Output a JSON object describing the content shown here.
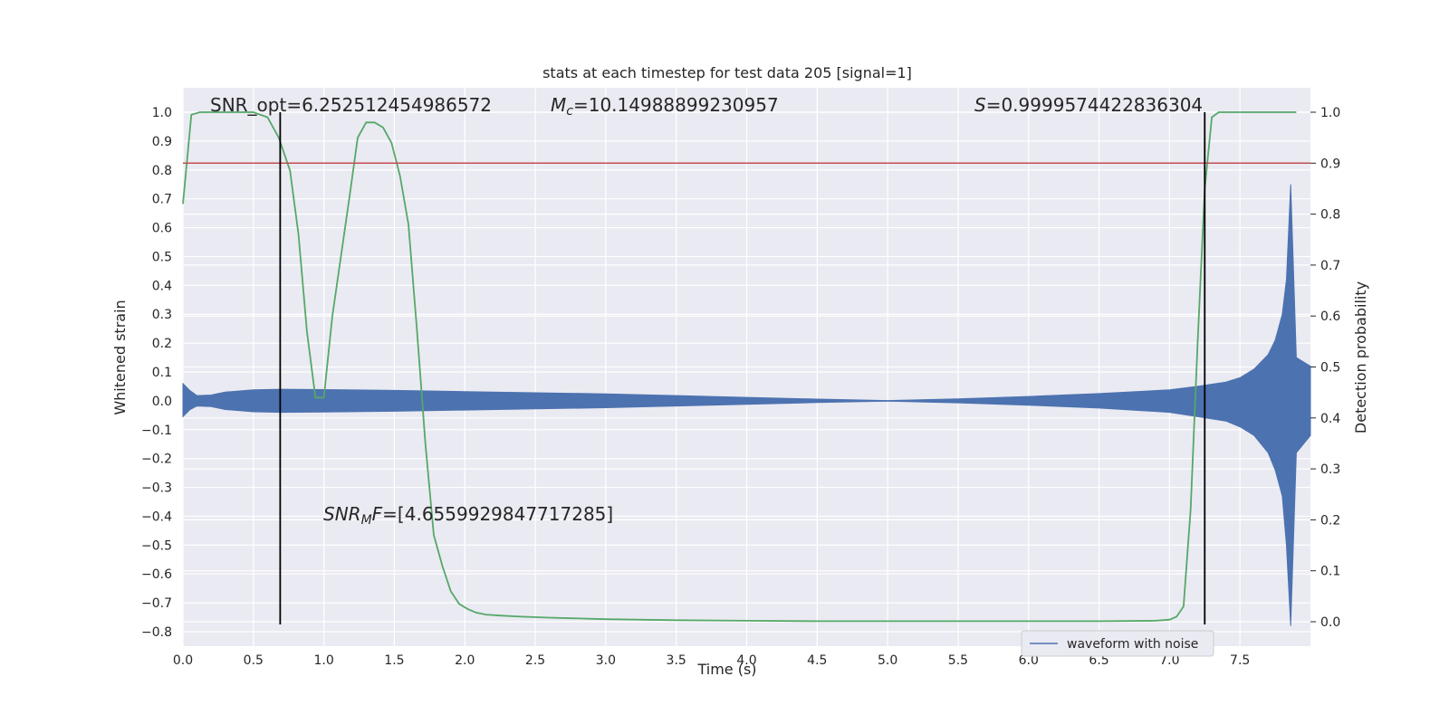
{
  "chart_data": {
    "type": "line",
    "title": "stats at each timestep for test data 205 [signal=1]",
    "xlabel": "Time (s)",
    "ylabel": "Whitened strain",
    "y2label": "Detection probability",
    "xlim": [
      0.0,
      8.0
    ],
    "ylim": [
      -0.85,
      1.08
    ],
    "y2lim": [
      -0.05,
      1.06
    ],
    "xticks": [
      "0.0",
      "0.5",
      "1.0",
      "1.5",
      "2.0",
      "2.5",
      "3.0",
      "3.5",
      "4.0",
      "4.5",
      "5.0",
      "5.5",
      "6.0",
      "6.5",
      "7.0",
      "7.5"
    ],
    "xtick_values": [
      0,
      0.5,
      1,
      1.5,
      2,
      2.5,
      3,
      3.5,
      4,
      4.5,
      5,
      5.5,
      6,
      6.5,
      7,
      7.5
    ],
    "yticks": [
      "1.0",
      "0.9",
      "0.8",
      "0.7",
      "0.6",
      "0.5",
      "0.4",
      "0.3",
      "0.2",
      "0.1",
      "0.0",
      "−0.1",
      "−0.2",
      "−0.3",
      "−0.4",
      "−0.5",
      "−0.6",
      "−0.7",
      "−0.8"
    ],
    "ytick_values": [
      1.0,
      0.9,
      0.8,
      0.7,
      0.6,
      0.5,
      0.4,
      0.3,
      0.2,
      0.1,
      0.0,
      -0.1,
      -0.2,
      -0.3,
      -0.4,
      -0.5,
      -0.6,
      -0.7,
      -0.8
    ],
    "y2ticks": [
      "1.0",
      "0.9",
      "0.8",
      "0.7",
      "0.6",
      "0.5",
      "0.4",
      "0.3",
      "0.2",
      "0.1",
      "0.0"
    ],
    "y2tick_values": [
      1.0,
      0.9,
      0.8,
      0.7,
      0.6,
      0.5,
      0.4,
      0.3,
      0.2,
      0.1,
      0.0
    ],
    "grid": true,
    "legend": {
      "entries": [
        "waveform with noise"
      ],
      "placement": "lower-right"
    },
    "annotations": {
      "snr_opt": "SNR_opt=6.252512454986572",
      "mc_symbol": "M",
      "mc_sub": "c",
      "mc_value": "=10.14988899230957",
      "s_symbol": "S",
      "s_value": "=0.9999574422836304",
      "snr_mf_base": "SNR",
      "snr_mf_sub": "M",
      "snr_mf_f": "F",
      "snr_mf_value": "=[4.6559929847717285]"
    },
    "threshold_probability": 0.9,
    "vertical_lines_x": [
      0.69,
      7.25
    ],
    "waveform_envelope": {
      "t": [
        0.0,
        0.05,
        0.1,
        0.2,
        0.3,
        0.5,
        0.7,
        1.0,
        1.5,
        2.0,
        2.5,
        3.0,
        3.5,
        4.0,
        4.5,
        5.0,
        5.5,
        6.0,
        6.5,
        7.0,
        7.2,
        7.4,
        7.5,
        7.6,
        7.7,
        7.75,
        7.8,
        7.83,
        7.86,
        7.9,
        8.0
      ],
      "upper": [
        0.06,
        0.035,
        0.018,
        0.02,
        0.03,
        0.038,
        0.04,
        0.039,
        0.036,
        0.032,
        0.028,
        0.024,
        0.018,
        0.012,
        0.006,
        0.001,
        0.007,
        0.015,
        0.025,
        0.038,
        0.05,
        0.065,
        0.08,
        0.11,
        0.16,
        0.21,
        0.3,
        0.42,
        0.75,
        0.15,
        0.12
      ],
      "lower": [
        -0.055,
        -0.03,
        -0.018,
        -0.02,
        -0.03,
        -0.038,
        -0.04,
        -0.039,
        -0.036,
        -0.032,
        -0.028,
        -0.024,
        -0.018,
        -0.012,
        -0.006,
        -0.001,
        -0.007,
        -0.015,
        -0.025,
        -0.04,
        -0.055,
        -0.07,
        -0.09,
        -0.12,
        -0.18,
        -0.24,
        -0.33,
        -0.5,
        -0.78,
        -0.18,
        -0.12
      ]
    },
    "series": [
      {
        "name": "detection probability",
        "axis": "right",
        "color": "#55a868",
        "x": [
          0.0,
          0.06,
          0.12,
          0.3,
          0.5,
          0.6,
          0.68,
          0.76,
          0.82,
          0.88,
          0.94,
          1.0,
          1.06,
          1.12,
          1.18,
          1.24,
          1.3,
          1.36,
          1.42,
          1.48,
          1.54,
          1.6,
          1.66,
          1.72,
          1.78,
          1.84,
          1.9,
          1.96,
          2.02,
          2.08,
          2.15,
          2.25,
          2.4,
          2.6,
          3.0,
          3.5,
          4.0,
          4.5,
          5.0,
          5.5,
          6.0,
          6.5,
          6.9,
          7.0,
          7.05,
          7.1,
          7.15,
          7.2,
          7.25,
          7.3,
          7.35,
          7.45,
          7.6,
          7.8,
          7.9
        ],
        "y": [
          0.82,
          0.995,
          1.0,
          1.0,
          1.0,
          0.99,
          0.95,
          0.885,
          0.76,
          0.57,
          0.44,
          0.44,
          0.6,
          0.715,
          0.83,
          0.95,
          0.98,
          0.98,
          0.97,
          0.94,
          0.875,
          0.78,
          0.575,
          0.35,
          0.17,
          0.11,
          0.06,
          0.035,
          0.025,
          0.018,
          0.014,
          0.012,
          0.01,
          0.008,
          0.005,
          0.003,
          0.002,
          0.001,
          0.001,
          0.001,
          0.001,
          0.001,
          0.002,
          0.004,
          0.01,
          0.03,
          0.22,
          0.55,
          0.85,
          0.99,
          1.0,
          1.0,
          1.0,
          1.0,
          1.0
        ]
      },
      {
        "name": "waveform with noise",
        "axis": "left",
        "color": "#4c72b0",
        "x": [],
        "y": []
      }
    ]
  },
  "colors": {
    "plot_bg": "#eaeaf2",
    "grid": "#ffffff",
    "waveform": "#4c72b0",
    "probability": "#55a868",
    "threshold": "#c44e52",
    "vlines": "#000000"
  }
}
